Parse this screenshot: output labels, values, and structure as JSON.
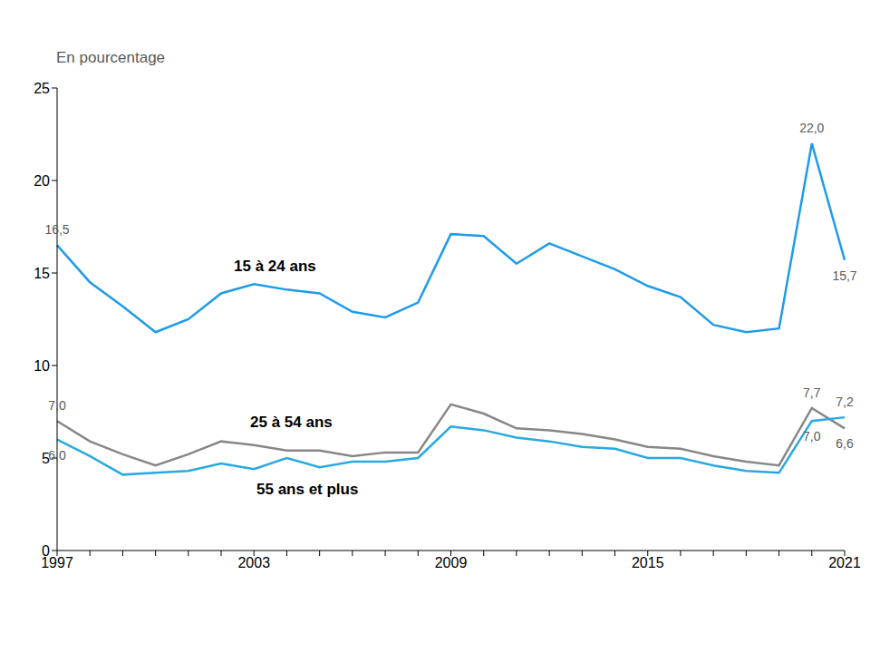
{
  "chart_data": {
    "type": "line",
    "y_label": "En pourcentage",
    "categories": [
      "1997",
      null,
      null,
      null,
      null,
      null,
      "2003",
      null,
      null,
      null,
      null,
      null,
      "2009",
      null,
      null,
      null,
      null,
      null,
      "2015",
      null,
      null,
      null,
      null,
      null,
      "2021"
    ],
    "ylim": [
      0,
      25
    ],
    "yticks": [
      0,
      5,
      10,
      15,
      20,
      25
    ],
    "grid": false,
    "series": [
      {
        "name": "15 à 24 ans",
        "color": "#1f9bea",
        "values": [
          16.5,
          14.5,
          13.2,
          11.8,
          12.5,
          13.9,
          14.4,
          14.1,
          13.9,
          12.9,
          12.6,
          13.4,
          17.1,
          17.0,
          15.5,
          16.6,
          15.9,
          15.2,
          14.3,
          13.7,
          12.2,
          11.8,
          12.0,
          22.0,
          15.7
        ],
        "value_labels": [
          "16,5",
          null,
          null,
          null,
          null,
          null,
          null,
          null,
          null,
          null,
          null,
          null,
          null,
          null,
          null,
          null,
          null,
          null,
          null,
          null,
          null,
          null,
          null,
          "22,0",
          "15,7"
        ]
      },
      {
        "name": "25 à 54 ans",
        "color": "#878787",
        "values": [
          7.0,
          5.9,
          5.2,
          4.6,
          5.2,
          5.9,
          5.7,
          5.4,
          5.4,
          5.1,
          5.3,
          5.3,
          7.9,
          7.4,
          6.6,
          6.5,
          6.3,
          6.0,
          5.6,
          5.5,
          5.1,
          4.8,
          4.6,
          7.7,
          6.6
        ],
        "value_labels": [
          "7,0",
          null,
          null,
          null,
          null,
          null,
          null,
          null,
          null,
          null,
          null,
          null,
          null,
          null,
          null,
          null,
          null,
          null,
          null,
          null,
          null,
          null,
          null,
          "7,7",
          "6,6"
        ]
      },
      {
        "name": "55 ans et plus",
        "color": "#2aa9e0",
        "values": [
          6.0,
          5.1,
          4.1,
          4.2,
          4.3,
          4.7,
          4.4,
          5.0,
          4.5,
          4.8,
          4.8,
          5.0,
          6.7,
          6.5,
          6.1,
          5.9,
          5.6,
          5.5,
          5.0,
          5.0,
          4.6,
          4.3,
          4.2,
          7.0,
          7.2
        ],
        "value_labels": [
          "6,0",
          null,
          null,
          null,
          null,
          null,
          null,
          null,
          null,
          null,
          null,
          null,
          null,
          null,
          null,
          null,
          null,
          null,
          null,
          null,
          null,
          null,
          null,
          "7,0",
          "7,2"
        ]
      }
    ]
  }
}
